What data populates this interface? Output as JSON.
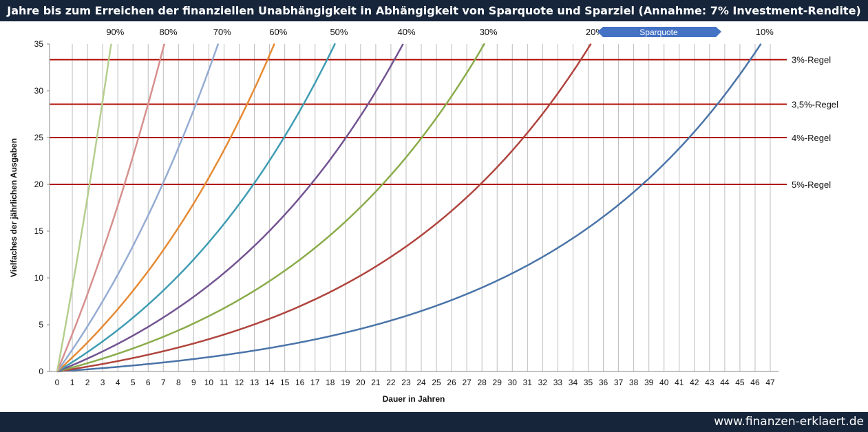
{
  "header": {
    "title": "Jahre bis zum Erreichen der finanziellen Unabhängigkeit in Abhängigkeit von Sparquote und Sparziel (Annahme: 7% Investment-Rendite)"
  },
  "footer": {
    "site": "www.finanzen-erklaert.de"
  },
  "chart_data": {
    "type": "line",
    "title": "Jahre bis zum Erreichen der finanziellen Unabhängigkeit in Abhängigkeit von Sparquote und Sparziel (Annahme: 7% Investment-Rendite)",
    "xlabel": "Dauer in Jahren",
    "ylabel": "Vielfaches der jährlichen Ausgaben",
    "xlim": [
      0,
      47
    ],
    "ylim": [
      0,
      35
    ],
    "x_ticks": [
      0,
      1,
      2,
      3,
      4,
      5,
      6,
      7,
      8,
      9,
      10,
      11,
      12,
      13,
      14,
      15,
      16,
      17,
      18,
      19,
      20,
      21,
      22,
      23,
      24,
      25,
      26,
      27,
      28,
      29,
      30,
      31,
      32,
      33,
      34,
      35,
      36,
      37,
      38,
      39,
      40,
      41,
      42,
      43,
      44,
      45,
      46,
      47
    ],
    "y_ticks": [
      0,
      5,
      10,
      15,
      20,
      25,
      30,
      35
    ],
    "grid": {
      "vertical": true,
      "horizontal": false
    },
    "assumed_return": 0.07,
    "annotation": "Sparquote",
    "series": [
      {
        "label": "10%",
        "savings_rate": 0.1,
        "color": "#4a74a8"
      },
      {
        "label": "20%",
        "savings_rate": 0.2,
        "color": "#b0443e"
      },
      {
        "label": "30%",
        "savings_rate": 0.3,
        "color": "#8aac4a"
      },
      {
        "label": "40%",
        "savings_rate": 0.4,
        "color": "#735492"
      },
      {
        "label": "50%",
        "savings_rate": 0.5,
        "color": "#3f9cb3"
      },
      {
        "label": "60%",
        "savings_rate": 0.6,
        "color": "#e58a34"
      },
      {
        "label": "70%",
        "savings_rate": 0.7,
        "color": "#95acd2"
      },
      {
        "label": "80%",
        "savings_rate": 0.8,
        "color": "#d6908e"
      },
      {
        "label": "90%",
        "savings_rate": 0.9,
        "color": "#b5cf8e"
      }
    ],
    "reference_lines": [
      {
        "label": "3%-Regel",
        "y": 33.33,
        "color": "#b0120a"
      },
      {
        "label": "3,5%-Regel",
        "y": 28.57,
        "color": "#b0120a"
      },
      {
        "label": "4%-Regel",
        "y": 25,
        "color": "#b0120a"
      },
      {
        "label": "5%-Regel",
        "y": 20,
        "color": "#b0120a"
      }
    ]
  }
}
